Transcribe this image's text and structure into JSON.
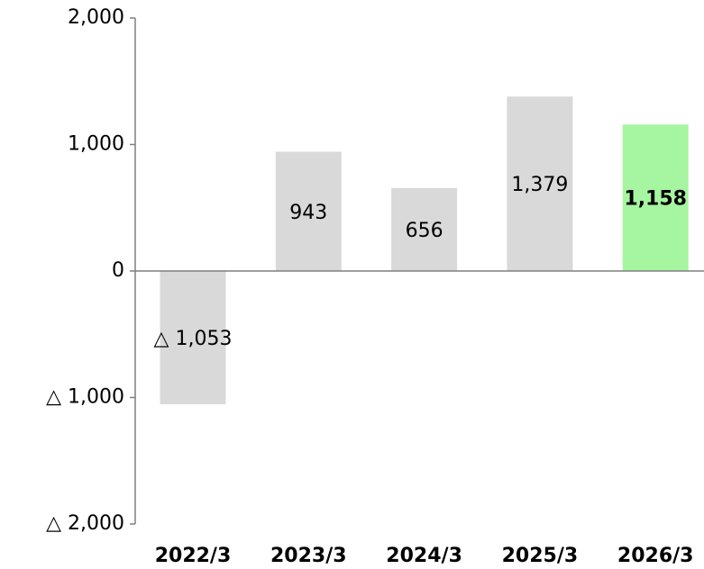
{
  "chart_data": {
    "type": "bar",
    "categories": [
      "2022/3",
      "2023/3",
      "2024/3",
      "2025/3",
      "2026/3"
    ],
    "values": [
      -1053,
      943,
      656,
      1379,
      1158
    ],
    "value_labels": [
      "△ 1,053",
      "943",
      "656",
      "1,379",
      "1,158"
    ],
    "colors": [
      "#d9d9d9",
      "#d9d9d9",
      "#d9d9d9",
      "#d9d9d9",
      "#a6f5a0"
    ],
    "ylim": [
      -2000,
      2000
    ],
    "yticks": [
      {
        "value": -2000,
        "label": "△ 2,000"
      },
      {
        "value": -1000,
        "label": "△ 1,000"
      },
      0,
      {
        "value": 1000,
        "label": "1,000"
      },
      {
        "value": 2000,
        "label": "2,000"
      }
    ],
    "grid": false
  }
}
